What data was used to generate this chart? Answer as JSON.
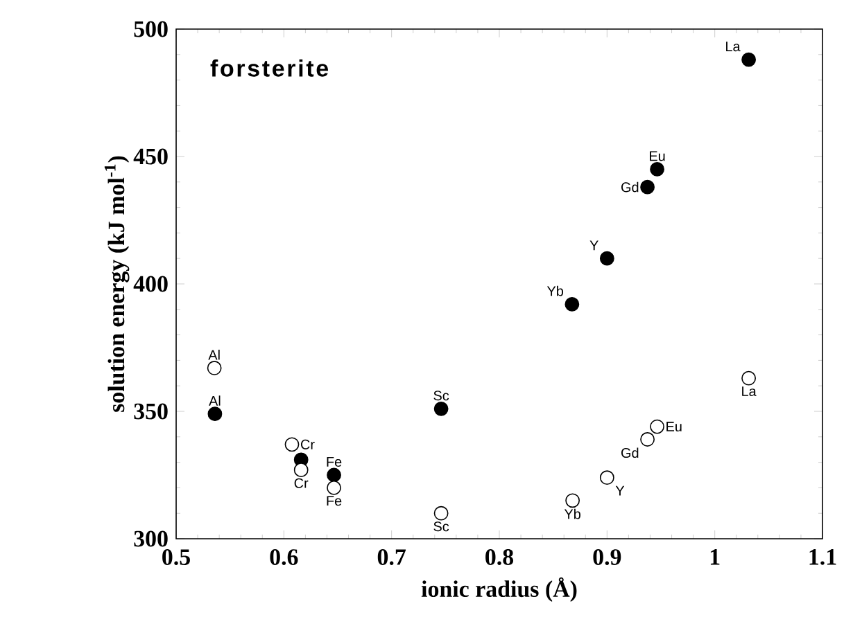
{
  "chart_data": {
    "type": "scatter",
    "xlabel": "ionic radius (Å)",
    "ylabel": "solution energy (kJ mol$^{-1}$)",
    "xlim": [
      0.5,
      1.1
    ],
    "ylim": [
      300,
      500
    ],
    "xticks": [
      0.5,
      0.6,
      0.7,
      0.8,
      0.9,
      1,
      1.1
    ],
    "yticks": [
      300,
      350,
      400,
      450,
      500
    ],
    "grid": false,
    "marker": "circle",
    "series": [
      {
        "color": "#000000",
        "x": [
          0.536,
          0.616,
          0.6465,
          0.746,
          0.8675,
          0.9,
          0.9375,
          0.9465,
          1.0315
        ],
        "values": [
          349,
          331,
          325,
          351,
          392,
          410,
          438,
          445,
          488
        ]
      },
      {
        "color": "#000000",
        "x": [
          0.5355,
          0.6075,
          0.616,
          0.6465,
          0.746,
          0.868,
          0.9,
          0.9375,
          0.9465,
          1.0315
        ],
        "values": [
          367,
          337,
          327,
          320,
          310,
          315,
          324,
          339,
          344,
          363
        ]
      }
    ],
    "annotations": [
      "forsterite",
      {
        "text": "Al",
        "x": 0.536,
        "y": 349
      },
      {
        "text": "Fe",
        "x": 0.6465,
        "y": 325
      },
      {
        "text": "Sc",
        "x": 0.746,
        "y": 351
      },
      {
        "text": "Yb",
        "x": 0.8675,
        "y": 392
      },
      {
        "text": "Y",
        "x": 0.9,
        "y": 410
      },
      {
        "text": "Gd",
        "x": 0.9375,
        "y": 438
      },
      {
        "text": "Eu",
        "x": 0.9465,
        "y": 445
      },
      {
        "text": "La",
        "x": 1.0315,
        "y": 488
      },
      {
        "text": "Al",
        "x": 0.5355,
        "y": 367
      },
      {
        "text": "Cr",
        "x": 0.6075,
        "y": 337
      },
      {
        "text": "Cr",
        "x": 0.616,
        "y": 327
      },
      {
        "text": "Fe",
        "x": 0.6465,
        "y": 320
      },
      {
        "text": "Sc",
        "x": 0.746,
        "y": 310
      },
      {
        "text": "Yb",
        "x": 0.868,
        "y": 315
      },
      {
        "text": "Y",
        "x": 0.9,
        "y": 324
      },
      {
        "text": "Gd",
        "x": 0.9375,
        "y": 339
      },
      {
        "text": "Eu",
        "x": 0.9465,
        "y": 344
      },
      {
        "text": "La",
        "x": 1.0315,
        "y": 363
      }
    ]
  }
}
